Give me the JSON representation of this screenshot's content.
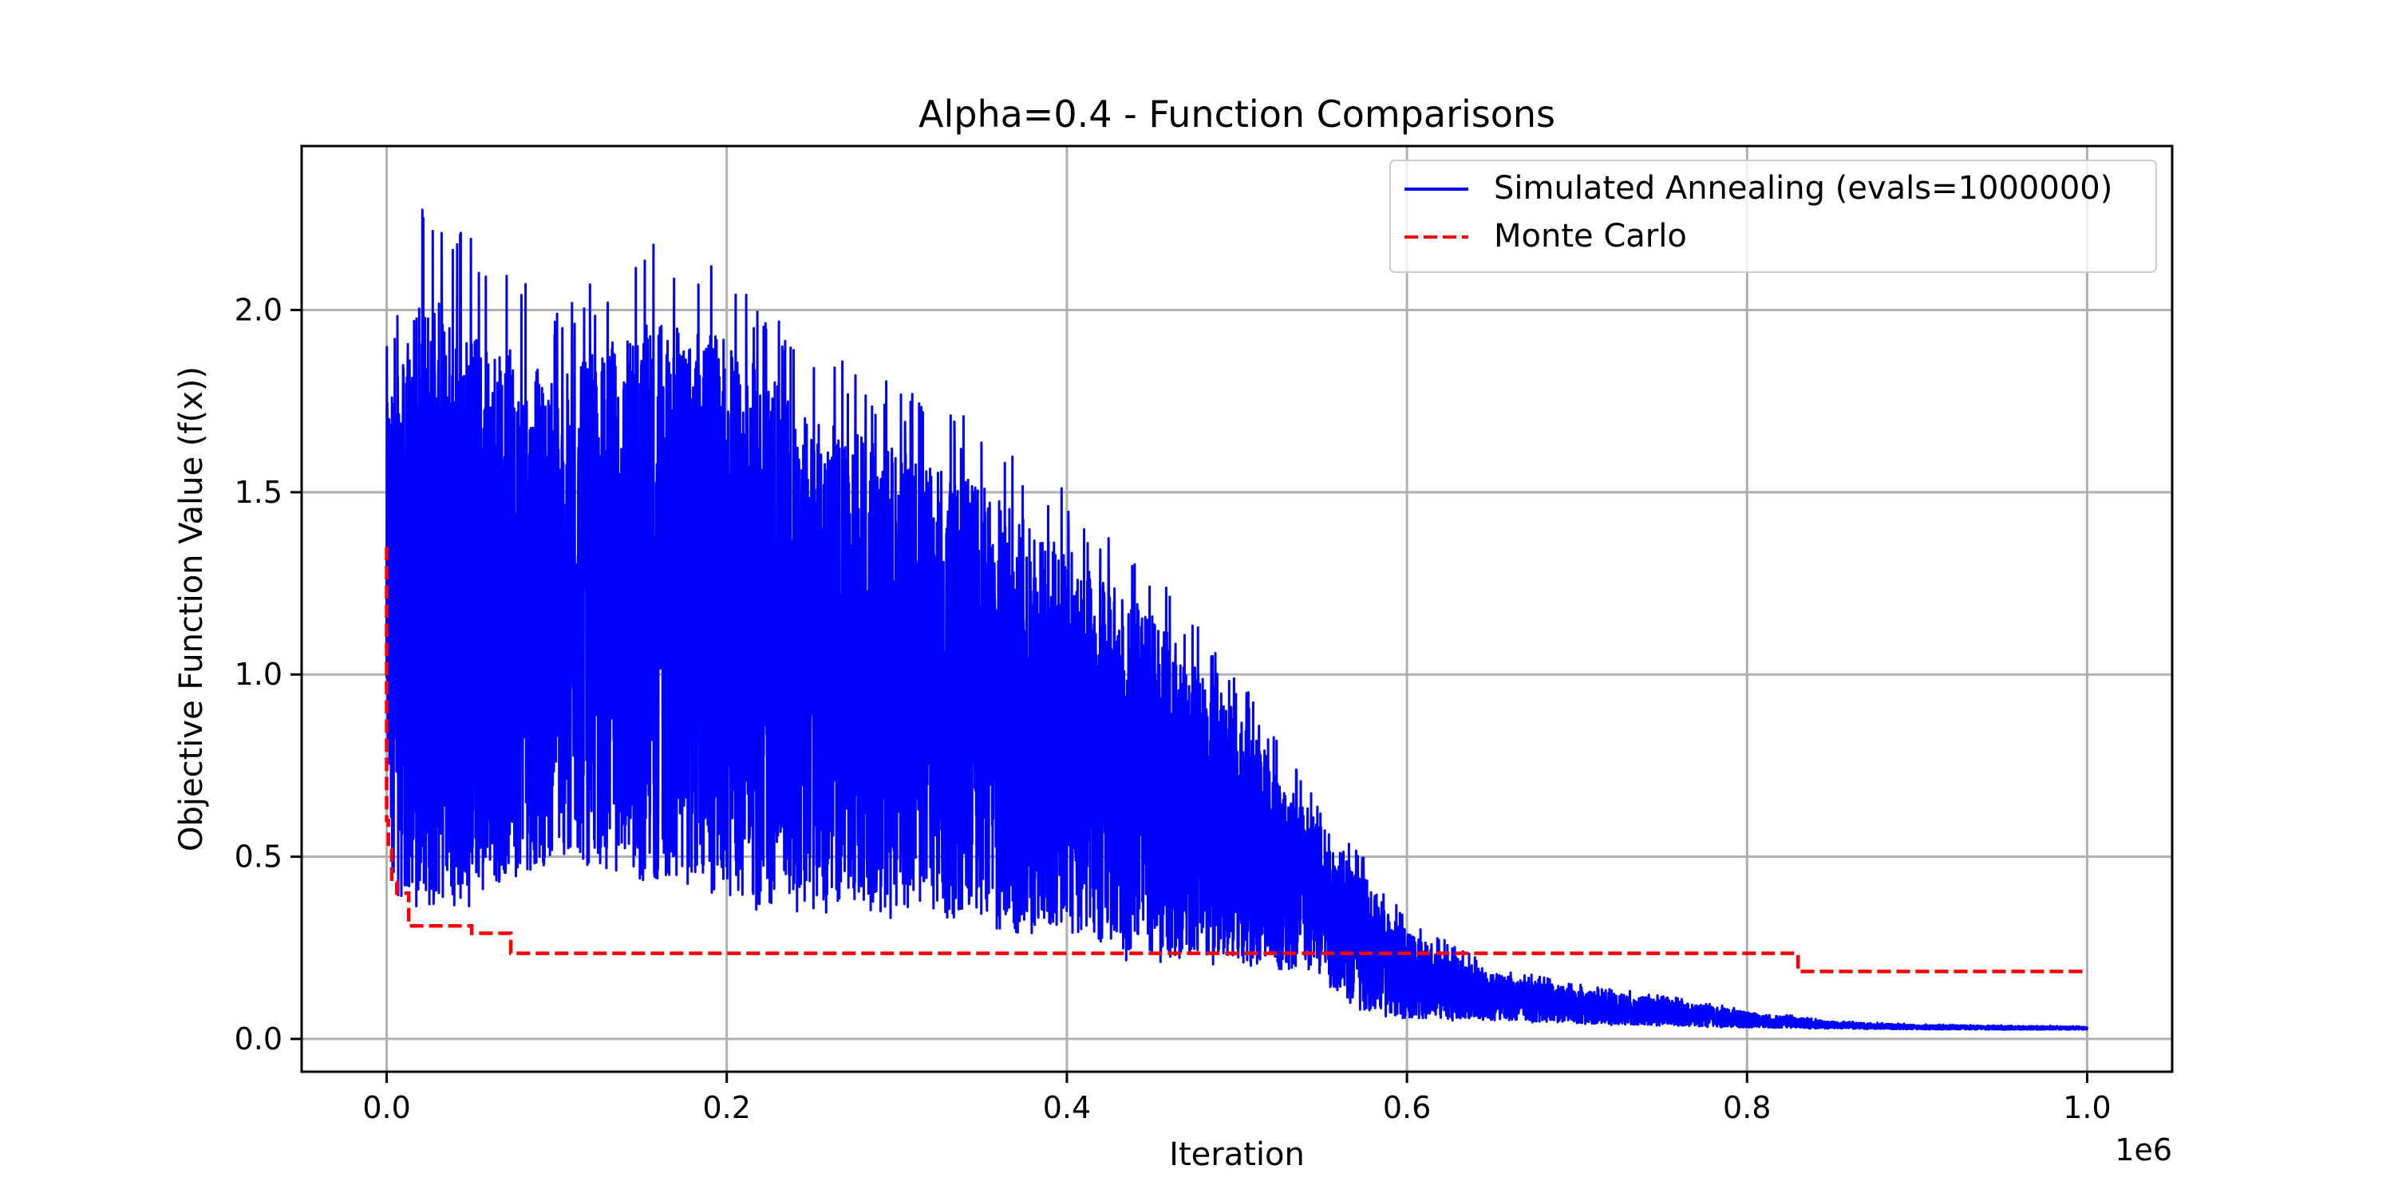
{
  "chart_data": {
    "type": "line",
    "title": "Alpha=0.4 - Function Comparisons",
    "xlabel": "Iteration",
    "ylabel": "Objective Function Value (f(x))",
    "x_offset_text": "1e6",
    "xlim": [
      -0.05,
      1.05
    ],
    "ylim": [
      -0.09,
      2.45
    ],
    "x_ticks": [
      0.0,
      0.2,
      0.4,
      0.6,
      0.8,
      1.0
    ],
    "x_tick_labels": [
      "0.0",
      "0.2",
      "0.4",
      "0.6",
      "0.8",
      "1.0"
    ],
    "y_ticks": [
      0.0,
      0.5,
      1.0,
      1.5,
      2.0
    ],
    "y_tick_labels": [
      "0.0",
      "0.5",
      "1.0",
      "1.5",
      "2.0"
    ],
    "grid": true,
    "legend_position": "top-right",
    "series": [
      {
        "name": "Simulated Annealing (evals=1000000)",
        "color": "#0000ff",
        "style": "solid",
        "envelope": {
          "x": [
            0.0,
            0.005,
            0.02,
            0.05,
            0.1,
            0.15,
            0.2,
            0.25,
            0.3,
            0.35,
            0.4,
            0.45,
            0.5,
            0.55,
            0.575,
            0.6,
            0.65,
            0.7,
            0.75,
            0.8,
            0.85,
            0.9,
            1.0
          ],
          "upper": [
            2.1,
            2.0,
            2.3,
            2.2,
            2.0,
            2.2,
            2.15,
            1.9,
            1.8,
            1.7,
            1.5,
            1.3,
            1.0,
            0.65,
            0.5,
            0.33,
            0.2,
            0.15,
            0.12,
            0.08,
            0.05,
            0.04,
            0.035
          ],
          "lower": [
            0.55,
            0.35,
            0.3,
            0.35,
            0.45,
            0.4,
            0.35,
            0.35,
            0.33,
            0.3,
            0.25,
            0.2,
            0.2,
            0.15,
            0.07,
            0.05,
            0.05,
            0.04,
            0.035,
            0.03,
            0.028,
            0.026,
            0.025
          ]
        }
      },
      {
        "name": "Monte Carlo",
        "color": "#ff0000",
        "style": "dashed",
        "x": [
          0.0,
          0.0,
          0.001,
          0.001,
          0.003,
          0.003,
          0.006,
          0.006,
          0.013,
          0.013,
          0.05,
          0.05,
          0.073,
          0.073,
          0.83,
          0.83,
          0.998
        ],
        "y": [
          1.35,
          0.6,
          0.6,
          0.52,
          0.52,
          0.43,
          0.43,
          0.4,
          0.4,
          0.31,
          0.31,
          0.29,
          0.29,
          0.235,
          0.235,
          0.185,
          0.185
        ]
      }
    ]
  }
}
